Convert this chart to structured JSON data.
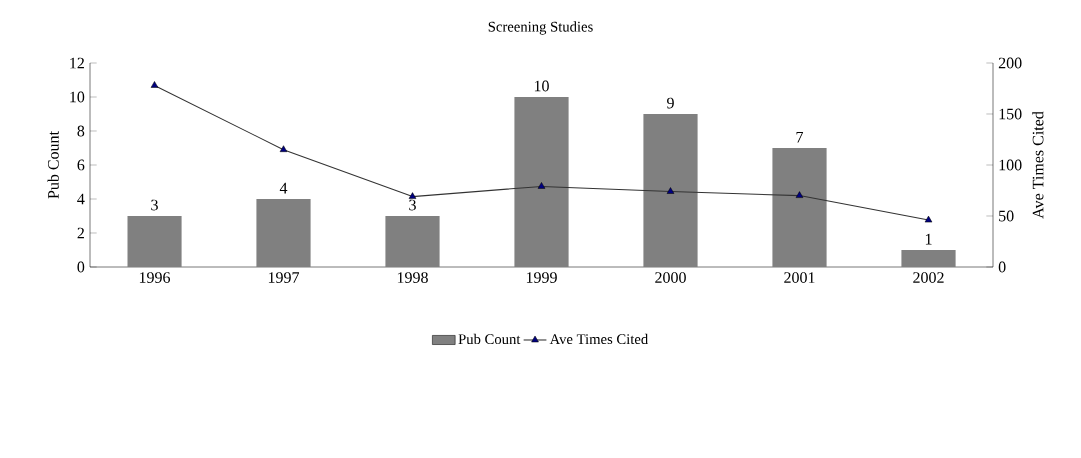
{
  "chart_data": {
    "type": "bar",
    "title": "Screening Studies",
    "ylabel": "Pub Count",
    "y2label": "Ave Times Cited",
    "categories": [
      "1996",
      "1997",
      "1998",
      "1999",
      "2000",
      "2001",
      "2002"
    ],
    "series": [
      {
        "name": "Pub Count",
        "color": "#808080",
        "values": [
          3,
          4,
          3,
          10,
          9,
          7,
          1
        ],
        "value_labels": [
          "3",
          "4",
          "3",
          "10",
          "9",
          "7",
          "1"
        ]
      },
      {
        "name": "Ave Times Cited",
        "type": "line",
        "axis": "y2",
        "color": "#000080",
        "marker": "triangle",
        "values": [
          178,
          115,
          69,
          79,
          74,
          70,
          46
        ]
      }
    ],
    "ylim": [
      0,
      12
    ],
    "yticks": [
      0,
      2,
      4,
      6,
      8,
      10,
      12
    ],
    "y2lim": [
      0,
      200
    ],
    "y2ticks": [
      0,
      50,
      100,
      150,
      200
    ],
    "legend": "bottom",
    "grid": false
  }
}
